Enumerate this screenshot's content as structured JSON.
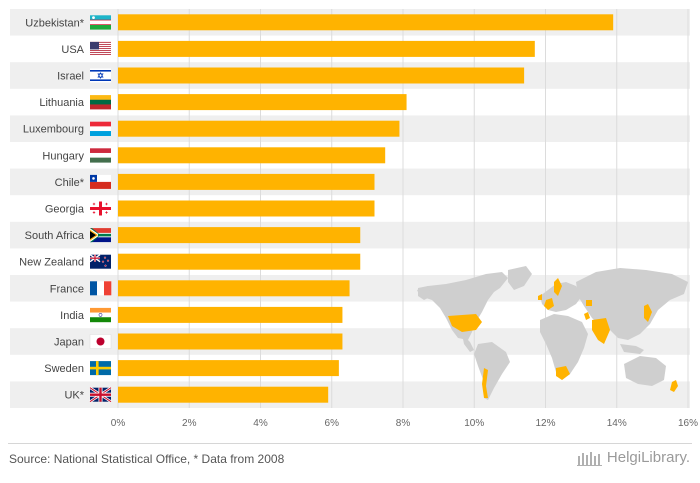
{
  "chart_data": {
    "type": "bar",
    "orientation": "horizontal",
    "title": "",
    "xlabel": "",
    "ylabel": "",
    "xlim": [
      0,
      16
    ],
    "tick_values": [
      0,
      2,
      4,
      6,
      8,
      10,
      12,
      14,
      16
    ],
    "tick_labels": [
      "0%",
      "2%",
      "4%",
      "6%",
      "8%",
      "10%",
      "12%",
      "14%",
      "16%"
    ],
    "grid": true,
    "categories": [
      "Uzbekistan*",
      "USA",
      "Israel",
      "Lithuania",
      "Luxembourg",
      "Hungary",
      "Chile*",
      "Georgia",
      "South Africa",
      "New Zealand",
      "France",
      "India",
      "Japan",
      "Sweden",
      "UK*"
    ],
    "flags": [
      "uzbekistan-flag-icon",
      "usa-flag-icon",
      "israel-flag-icon",
      "lithuania-flag-icon",
      "luxembourg-flag-icon",
      "hungary-flag-icon",
      "chile-flag-icon",
      "georgia-flag-icon",
      "south-africa-flag-icon",
      "new-zealand-flag-icon",
      "france-flag-icon",
      "india-flag-icon",
      "japan-flag-icon",
      "sweden-flag-icon",
      "uk-flag-icon"
    ],
    "values": [
      13.9,
      11.7,
      11.4,
      8.1,
      7.9,
      7.5,
      7.2,
      7.2,
      6.8,
      6.8,
      6.5,
      6.3,
      6.3,
      6.2,
      5.9
    ],
    "bar_color": "#FFB300"
  },
  "map": {
    "icon": "world-map-icon",
    "highlight_color": "#FFB300",
    "base_color": "#cfcfcf"
  },
  "footer": {
    "source": "Source: National Statistical Office, * Data from 2008",
    "brand": "HelgiLibrary."
  }
}
